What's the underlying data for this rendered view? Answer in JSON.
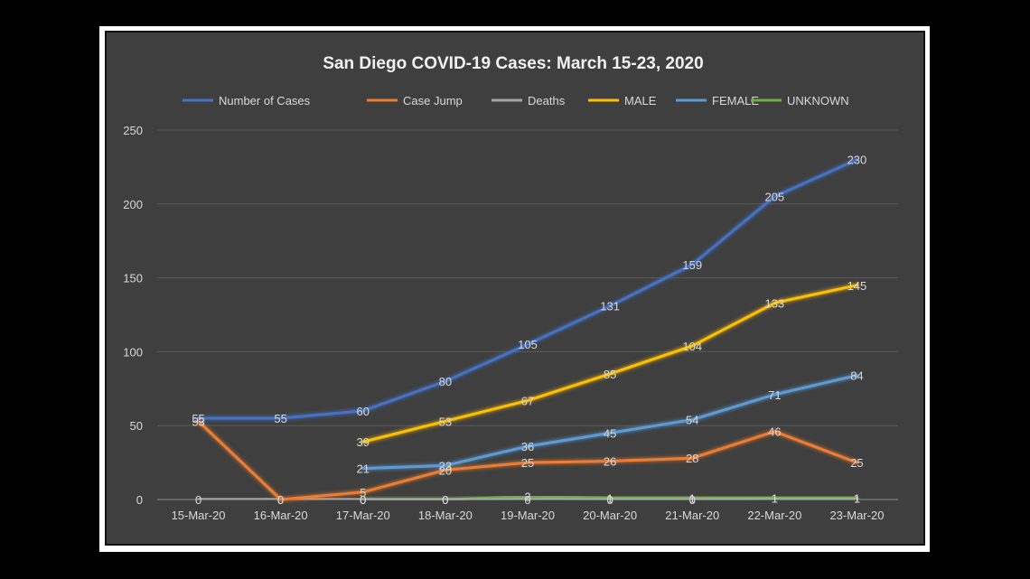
{
  "chart_data": {
    "type": "line",
    "title": "San Diego COVID-19 Cases: March 15-23, 2020",
    "xlabel": "",
    "ylabel": "",
    "categories": [
      "15-Mar-20",
      "16-Mar-20",
      "17-Mar-20",
      "18-Mar-20",
      "19-Mar-20",
      "20-Mar-20",
      "21-Mar-20",
      "22-Mar-20",
      "23-Mar-20"
    ],
    "ylim": [
      0,
      250
    ],
    "yticks": [
      "0",
      "50",
      "100",
      "150",
      "200",
      "250"
    ],
    "grid": true,
    "legend": "top",
    "series": [
      {
        "name": "Number of Cases",
        "color": "#4472c4",
        "label_color": "#d9d9d9",
        "values": [
          55,
          55,
          60,
          80,
          105,
          131,
          159,
          205,
          230
        ]
      },
      {
        "name": "Case Jump",
        "color": "#ed7d31",
        "label_color": "#d9d9d9",
        "values": [
          53,
          0,
          5,
          20,
          25,
          26,
          28,
          46,
          25
        ]
      },
      {
        "name": "Deaths",
        "color": "#a5a5a5",
        "label_color": "#d9d9d9",
        "values": [
          0,
          0,
          0,
          0,
          0,
          0,
          0,
          1,
          1
        ]
      },
      {
        "name": "MALE",
        "color": "#ffc000",
        "label_color": "#d9d9d9",
        "values": [
          null,
          null,
          39,
          53,
          67,
          85,
          104,
          133,
          145
        ]
      },
      {
        "name": "FEMALE",
        "color": "#5b9bd5",
        "label_color": "#d9d9d9",
        "values": [
          null,
          null,
          21,
          23,
          36,
          45,
          54,
          71,
          84
        ]
      },
      {
        "name": "UNKNOWN",
        "color": "#70ad47",
        "label_color": "#d9d9d9",
        "values": [
          null,
          null,
          0,
          0,
          2,
          1,
          1,
          1,
          1
        ]
      }
    ]
  }
}
